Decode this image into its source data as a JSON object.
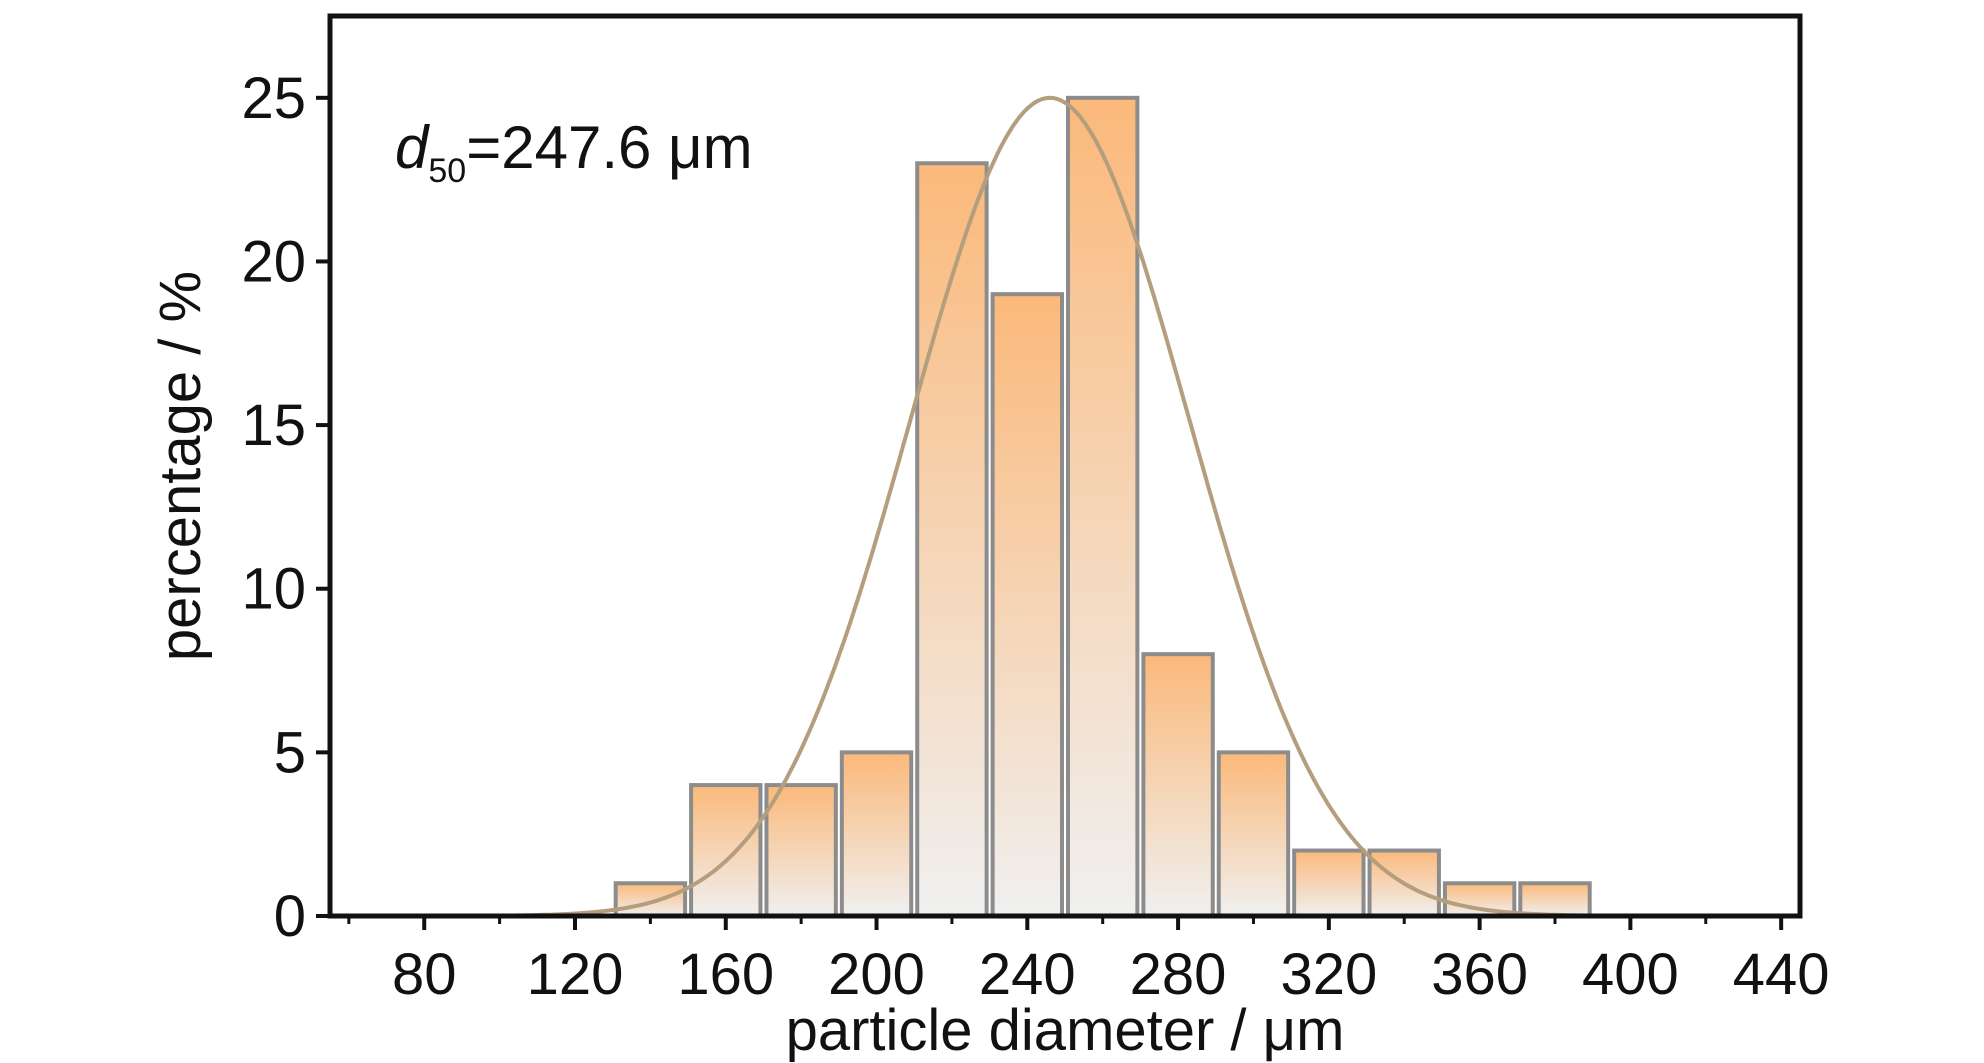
{
  "chart_data": {
    "type": "bar",
    "title": "",
    "xlabel": "particle diameter / μm",
    "ylabel": "percentage / %",
    "xlim": [
      55,
      445
    ],
    "ylim": [
      0,
      27.5
    ],
    "x_ticks": [
      80,
      120,
      160,
      200,
      240,
      280,
      320,
      360,
      400,
      440
    ],
    "y_ticks": [
      0,
      5,
      10,
      15,
      20,
      25
    ],
    "bin_width": 20,
    "x": [
      140,
      160,
      180,
      200,
      220,
      240,
      260,
      280,
      300,
      320,
      340,
      360,
      380
    ],
    "values": [
      1,
      4,
      4,
      5,
      23,
      19,
      25,
      8,
      5,
      2,
      2,
      1,
      1
    ],
    "fit_curve": {
      "type": "gaussian",
      "peak": 25,
      "center": 246,
      "sigma": 37
    },
    "annotation": {
      "symbol": "d",
      "subscript": "50",
      "text": "=247.6 μm"
    },
    "colors": {
      "bar_top": "#fbb97a",
      "bar_bottom": "#f0f0f0",
      "bar_edge": "#8c8c8c",
      "curve": "#b59e7e",
      "frame": "#111111"
    }
  }
}
